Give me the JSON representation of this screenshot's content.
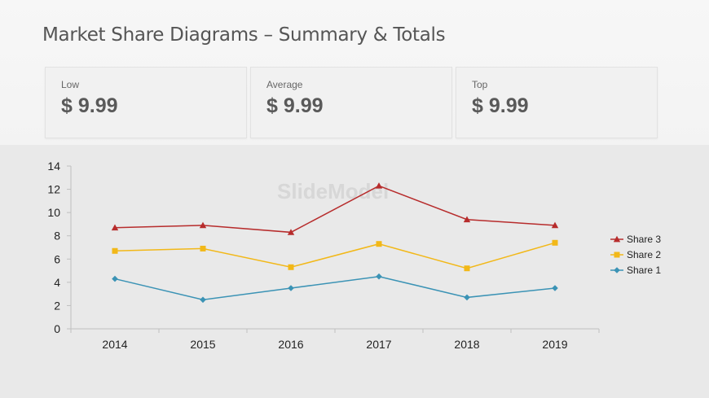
{
  "title": "Market Share Diagrams – Summary & Totals",
  "cards": [
    {
      "label": "Low",
      "value": "$ 9.99"
    },
    {
      "label": "Average",
      "value": "$ 9.99"
    },
    {
      "label": "Top",
      "value": "$ 9.99"
    }
  ],
  "watermark": "SlideModel",
  "chart_data": {
    "type": "line",
    "x": [
      "2014",
      "2015",
      "2016",
      "2017",
      "2018",
      "2019"
    ],
    "ylim": [
      0,
      14
    ],
    "yticks": [
      0,
      2,
      4,
      6,
      8,
      10,
      12,
      14
    ],
    "grid": false,
    "legend": "right",
    "series": [
      {
        "name": "Share 3",
        "values": [
          8.7,
          8.9,
          8.3,
          12.3,
          9.4,
          8.9
        ],
        "color": "#b72c2c",
        "marker": "triangle"
      },
      {
        "name": "Share 2",
        "values": [
          6.7,
          6.9,
          5.3,
          7.3,
          5.2,
          7.4
        ],
        "color": "#f2b818",
        "marker": "square"
      },
      {
        "name": "Share 1",
        "values": [
          4.3,
          2.5,
          3.5,
          4.5,
          2.7,
          3.5
        ],
        "color": "#3b93b5",
        "marker": "diamond"
      }
    ]
  }
}
